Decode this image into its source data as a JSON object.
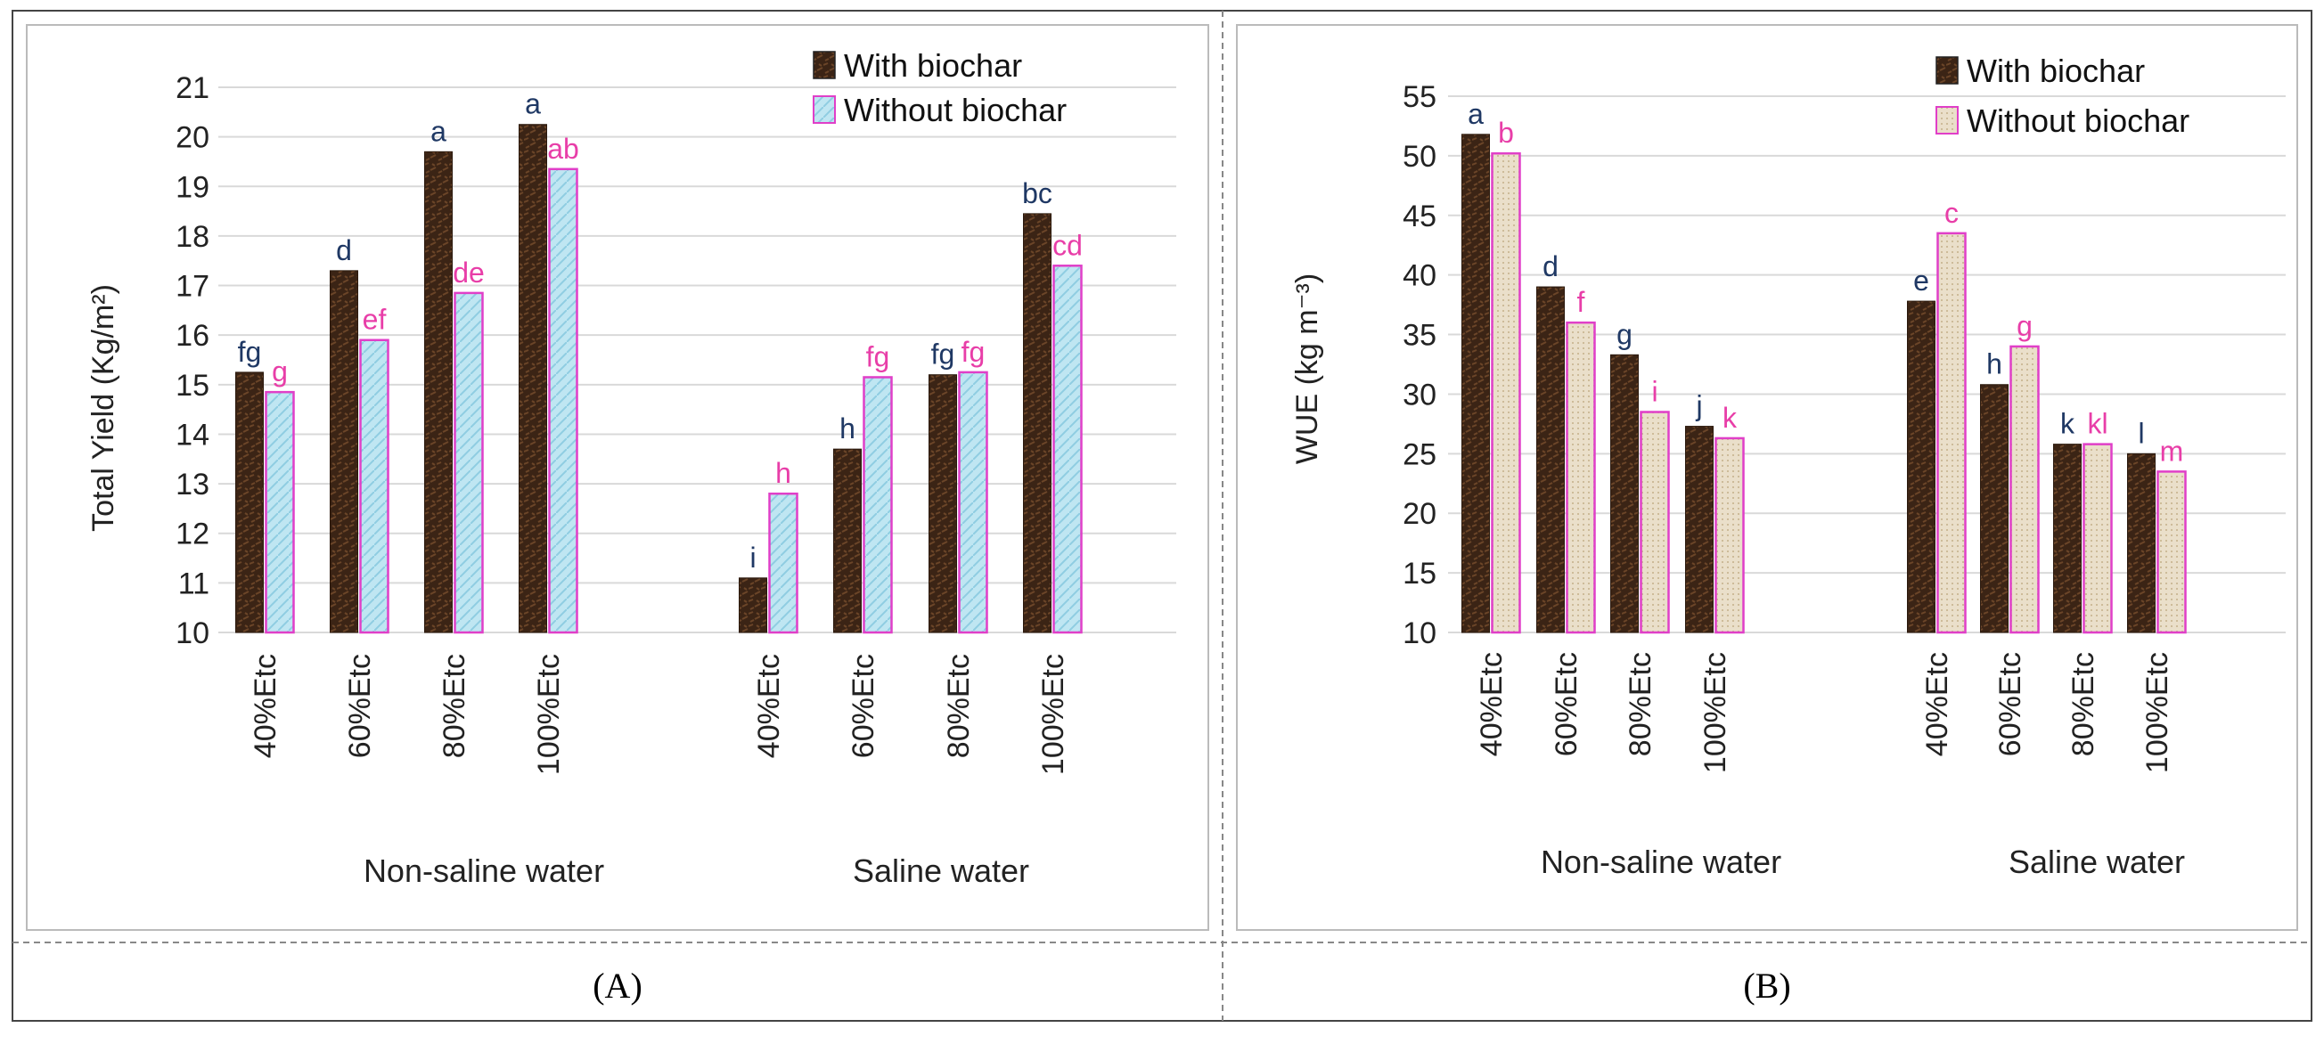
{
  "colors": {
    "with_fill": "#3b2415",
    "with_fill_light": "#5a3a24",
    "without_fill_A": "#bfe6f2",
    "without_fill_B": "#eadfca",
    "without_stroke": "#e03fc8",
    "label_with": "#1f3864",
    "label_without": "#e83ea8",
    "grid": "#d9d9d9"
  },
  "panels": [
    {
      "caption": "(A)",
      "chart_data": {
        "type": "bar",
        "ylabel": "Total Yield (Kg/m²)",
        "ylim": [
          10,
          21
        ],
        "yticks": [
          "10",
          "11",
          "12",
          "13",
          "14",
          "15",
          "16",
          "17",
          "18",
          "19",
          "20",
          "21"
        ],
        "legend": [
          "With biochar",
          "Without biochar"
        ],
        "legend_position": "top-right",
        "groups": [
          "Non-saline water",
          "Saline water"
        ],
        "categories": [
          "40%Etc",
          "60%Etc",
          "80%Etc",
          "100%Etc",
          "40%Etc",
          "60%Etc",
          "80%Etc",
          "100%Etc"
        ],
        "series": [
          {
            "name": "With biochar",
            "values": [
              15.25,
              17.3,
              19.7,
              20.25,
              11.1,
              13.7,
              15.2,
              18.45
            ],
            "labels": [
              "fg",
              "d",
              "a",
              "a",
              "i",
              "h",
              "fg",
              "bc"
            ]
          },
          {
            "name": "Without biochar",
            "values": [
              14.85,
              15.9,
              16.85,
              19.35,
              12.8,
              15.15,
              15.25,
              17.4
            ],
            "labels": [
              "g",
              "ef",
              "de",
              "ab",
              "h",
              "fg",
              "fg",
              "cd"
            ]
          }
        ]
      }
    },
    {
      "caption": "(B)",
      "chart_data": {
        "type": "bar",
        "ylabel": "WUE (kg m⁻³)",
        "ylim": [
          10,
          55
        ],
        "yticks": [
          "10",
          "15",
          "20",
          "25",
          "30",
          "35",
          "40",
          "45",
          "50",
          "55"
        ],
        "legend": [
          "With biochar",
          "Without biochar"
        ],
        "legend_position": "top-right",
        "groups": [
          "Non-saline water",
          "Saline water"
        ],
        "categories": [
          "40%Etc",
          "60%Etc",
          "80%Etc",
          "100%Etc",
          "40%Etc",
          "60%Etc",
          "80%Etc",
          "100%Etc"
        ],
        "series": [
          {
            "name": "With biochar",
            "values": [
              51.8,
              39.0,
              33.3,
              27.3,
              37.8,
              30.8,
              25.8,
              25.0
            ],
            "labels": [
              "a",
              "d",
              "g",
              "j",
              "e",
              "h",
              "k",
              "l"
            ]
          },
          {
            "name": "Without biochar",
            "values": [
              50.2,
              36.0,
              28.5,
              26.3,
              43.5,
              34.0,
              25.8,
              23.5
            ],
            "labels": [
              "b",
              "f",
              "i",
              "k",
              "c",
              "g",
              "kl",
              "m"
            ]
          }
        ]
      }
    }
  ]
}
